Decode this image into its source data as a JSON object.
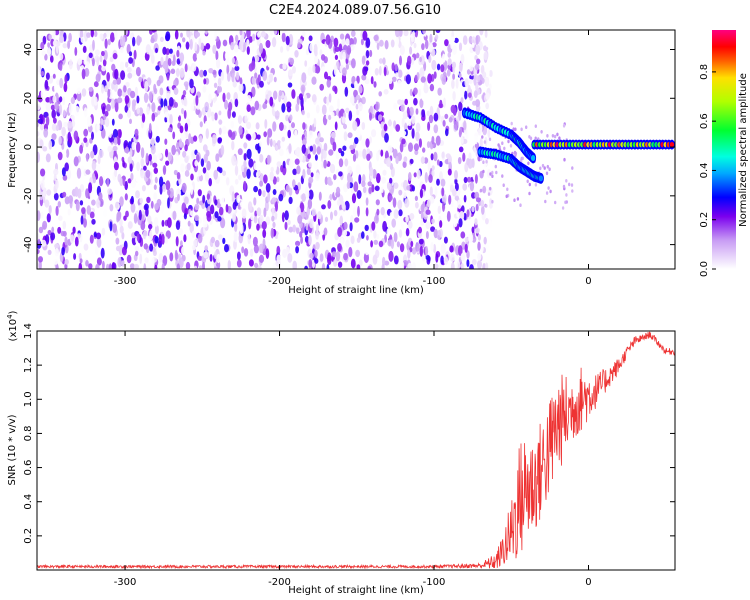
{
  "title": "C2E4.2024.089.07.56.G10",
  "chart_data": [
    {
      "type": "heatmap",
      "title": "C2E4.2024.089.07.56.G10",
      "xlabel": "Height of straight line (km)",
      "ylabel": "Frequency (Hz)",
      "xlim": [
        -357,
        56
      ],
      "ylim": [
        -50,
        48
      ],
      "x_ticks": [
        -300,
        -200,
        -100,
        0
      ],
      "x_tick_labels": [
        "-300",
        "-200",
        "-100",
        "0"
      ],
      "y_ticks": [
        -40,
        -20,
        0,
        20,
        40
      ],
      "y_tick_labels": [
        "-40",
        "-20",
        "0",
        "20",
        "40"
      ],
      "grid": false,
      "colorbar": {
        "label": "Normalized spectral amplitude",
        "range": [
          0,
          0.97
        ],
        "ticks": [
          0,
          0.2,
          0.4,
          0.6,
          0.8
        ],
        "tick_labels": [
          "0.0",
          "0.2",
          "0.4",
          "0.6",
          "0.8"
        ],
        "colormap": "rainbow (white-violet-blue-cyan-green-yellow-red-magenta)"
      },
      "noise_region": {
        "x_range": [
          -357,
          -63
        ],
        "freq_range": [
          -50,
          48
        ],
        "typical_amplitude": [
          0.0,
          0.15
        ]
      },
      "signal_tracks": [
        {
          "name": "upper branch",
          "points": [
            [
              -80,
              14
            ],
            [
              -70,
              12
            ],
            [
              -60,
              8
            ],
            [
              -50,
              5
            ],
            [
              -45,
              2
            ],
            [
              -40,
              -2
            ],
            [
              -35,
              -5
            ]
          ],
          "amplitude": 0.35
        },
        {
          "name": "lower branch",
          "points": [
            [
              -70,
              -2
            ],
            [
              -60,
              -3
            ],
            [
              -50,
              -5
            ],
            [
              -45,
              -8
            ],
            [
              -40,
              -10
            ],
            [
              -35,
              -12
            ],
            [
              -30,
              -13
            ]
          ],
          "amplitude": 0.35
        },
        {
          "name": "main carrier",
          "points": [
            [
              -35,
              1
            ],
            [
              -20,
              1
            ],
            [
              0,
              1
            ],
            [
              20,
              1
            ],
            [
              40,
              1
            ],
            [
              56,
              1
            ]
          ],
          "amplitude": 0.95
        }
      ]
    },
    {
      "type": "line",
      "xlabel": "Height of straight line (km)",
      "ylabel": "SNR (10 * v/v)",
      "multiplier_label": "(x10",
      "multiplier_exp": "4",
      "xlim": [
        -357,
        56
      ],
      "ylim": [
        0,
        1.4
      ],
      "x_ticks": [
        -300,
        -200,
        -100,
        0
      ],
      "x_tick_labels": [
        "-300",
        "-200",
        "-100",
        "0"
      ],
      "y_ticks": [
        0.2,
        0.4,
        0.6,
        0.8,
        1.0,
        1.2,
        1.4
      ],
      "y_tick_labels": [
        "0.2",
        "0.4",
        "0.6",
        "0.8",
        "1.0",
        "1.2",
        "1.4"
      ],
      "grid": false,
      "series_color": "#ee3333",
      "series": [
        {
          "name": "SNR",
          "x": [
            -357,
            -300,
            -250,
            -200,
            -150,
            -100,
            -70,
            -60,
            -55,
            -50,
            -45,
            -40,
            -35,
            -30,
            -25,
            -20,
            -15,
            -10,
            -5,
            0,
            5,
            10,
            15,
            20,
            25,
            30,
            35,
            40,
            45,
            50,
            56
          ],
          "y": [
            0.02,
            0.02,
            0.02,
            0.02,
            0.02,
            0.02,
            0.025,
            0.05,
            0.12,
            0.22,
            0.4,
            0.48,
            0.5,
            0.6,
            0.72,
            0.85,
            0.9,
            0.95,
            1.0,
            1.02,
            1.05,
            1.1,
            1.15,
            1.2,
            1.28,
            1.34,
            1.36,
            1.38,
            1.33,
            1.28,
            1.28
          ],
          "noise_amplitude": [
            0.008,
            0.008,
            0.008,
            0.008,
            0.008,
            0.008,
            0.015,
            0.05,
            0.1,
            0.2,
            0.35,
            0.35,
            0.3,
            0.3,
            0.3,
            0.3,
            0.25,
            0.2,
            0.2,
            0.15,
            0.1,
            0.08,
            0.06,
            0.05,
            0.03,
            0.03,
            0.02,
            0.02,
            0.02,
            0.02,
            0.02
          ]
        }
      ]
    }
  ]
}
